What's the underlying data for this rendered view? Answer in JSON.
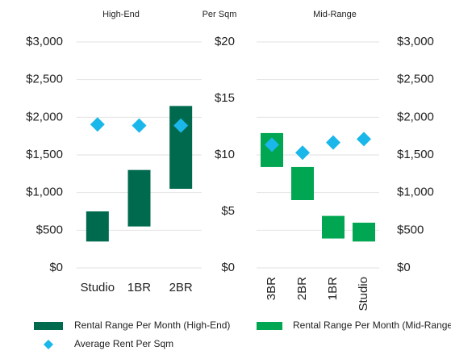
{
  "chart_data": [
    {
      "type": "floating-bar",
      "title": "High-End",
      "categories": [
        "Studio",
        "1BR",
        "2BR"
      ],
      "ylim": [
        0,
        3000
      ],
      "yticks": [
        {
          "value": 0,
          "label": "$0"
        },
        {
          "value": 500,
          "label": "$500"
        },
        {
          "value": 1000,
          "label": "$1,000"
        },
        {
          "value": 1500,
          "label": "$1,500"
        },
        {
          "value": 2000,
          "label": "$2,000"
        },
        {
          "value": 2500,
          "label": "$2,500"
        },
        {
          "value": 3000,
          "label": "$3,000"
        }
      ],
      "y2label": "Per Sqm",
      "y2lim": [
        0,
        20
      ],
      "y2ticks": [
        {
          "value": 0,
          "label": "$0"
        },
        {
          "value": 5,
          "label": "$5"
        },
        {
          "value": 10,
          "label": "$10"
        },
        {
          "value": 15,
          "label": "$15"
        },
        {
          "value": 20,
          "label": "$20"
        }
      ],
      "series": [
        {
          "name": "Rental Range Per Month (High-End)",
          "color": "#006a4e",
          "low": [
            350,
            550,
            1050
          ],
          "high": [
            750,
            1300,
            2150
          ]
        },
        {
          "name": "Average Rent Per Sqm",
          "color": "#1ab7ea",
          "axis": "y2",
          "values": [
            12.7,
            12.6,
            12.6
          ]
        }
      ],
      "grid": true
    },
    {
      "type": "floating-bar",
      "title": "Mid-Range",
      "categories": [
        "3BR",
        "2BR",
        "1BR",
        "Studio"
      ],
      "ylim": [
        0,
        3000
      ],
      "yticks": [
        {
          "value": 0,
          "label": "$0"
        },
        {
          "value": 500,
          "label": "$500"
        },
        {
          "value": 1000,
          "label": "$1,000"
        },
        {
          "value": 1500,
          "label": "$1,500"
        },
        {
          "value": 2000,
          "label": "$2,000"
        },
        {
          "value": 2500,
          "label": "$2,500"
        },
        {
          "value": 3000,
          "label": "$3,000"
        }
      ],
      "series": [
        {
          "name": "Rental Range Per Month (Mid-Range)",
          "color": "#00a651",
          "low": [
            1340,
            900,
            390,
            350
          ],
          "high": [
            1790,
            1340,
            690,
            600
          ]
        },
        {
          "color": "#1ab7ea",
          "axis": "y2",
          "values": [
            10.9,
            10.2,
            11.1,
            11.4
          ]
        }
      ],
      "grid": true
    }
  ]
}
